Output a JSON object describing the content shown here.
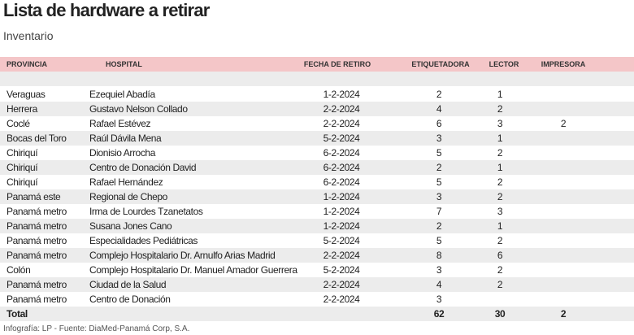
{
  "header": {
    "title": "Lista de hardware a retirar",
    "subtitle": "Inventario"
  },
  "table": {
    "columns": [
      "PROVINCIA",
      "HOSPITAL",
      "FECHA DE RETIRO",
      "ETIQUETADORA",
      "LECTOR",
      "IMPRESORA"
    ],
    "rows": [
      [
        "Veraguas",
        "Ezequiel Abadía",
        "1-2-2024",
        2,
        1,
        null
      ],
      [
        "Herrera",
        "Gustavo Nelson Collado",
        "2-2-2024",
        4,
        2,
        null
      ],
      [
        "Coclé",
        "Rafael  Estévez",
        "2-2-2024",
        6,
        3,
        2
      ],
      [
        "Bocas del Toro",
        "Raúl Dávila Mena",
        "5-2-2024",
        3,
        1,
        null
      ],
      [
        "Chiriquí",
        "Dionisio Arrocha",
        "6-2-2024",
        5,
        2,
        null
      ],
      [
        "Chiriquí",
        "Centro de Donación David",
        "6-2-2024",
        2,
        1,
        null
      ],
      [
        "Chiriquí",
        "Rafael  Hernández",
        "6-2-2024",
        5,
        2,
        null
      ],
      [
        "Panamá este",
        "Regional de Chepo",
        "1-2-2024",
        3,
        2,
        null
      ],
      [
        "Panamá metro",
        "Irma de Lourdes Tzanetatos",
        "1-2-2024",
        7,
        3,
        null
      ],
      [
        "Panamá metro",
        "Susana Jones Cano",
        "1-2-2024",
        2,
        1,
        null
      ],
      [
        "Panamá metro",
        "Especialidades  Pediátricas",
        "5-2-2024",
        5,
        2,
        null
      ],
      [
        "Panamá metro",
        "Complejo Hospitalario Dr. Arnulfo Arias Madrid",
        "2-2-2024",
        8,
        6,
        null
      ],
      [
        "Colón",
        "Complejo Hospitalario Dr. Manuel Amador Guerrera",
        "5-2-2024",
        3,
        2,
        null
      ],
      [
        "Panamá metro",
        "Ciudad de la  Salud",
        "2-2-2024",
        4,
        2,
        null
      ],
      [
        "Panamá metro",
        "Centro de Donación",
        "2-2-2024",
        3,
        null,
        null
      ]
    ],
    "total": [
      "Total",
      null,
      null,
      62,
      30,
      2
    ]
  },
  "footer": {
    "source": "Infografía: LP - Fuente: DiaMed-Panamá Corp, S.A."
  }
}
